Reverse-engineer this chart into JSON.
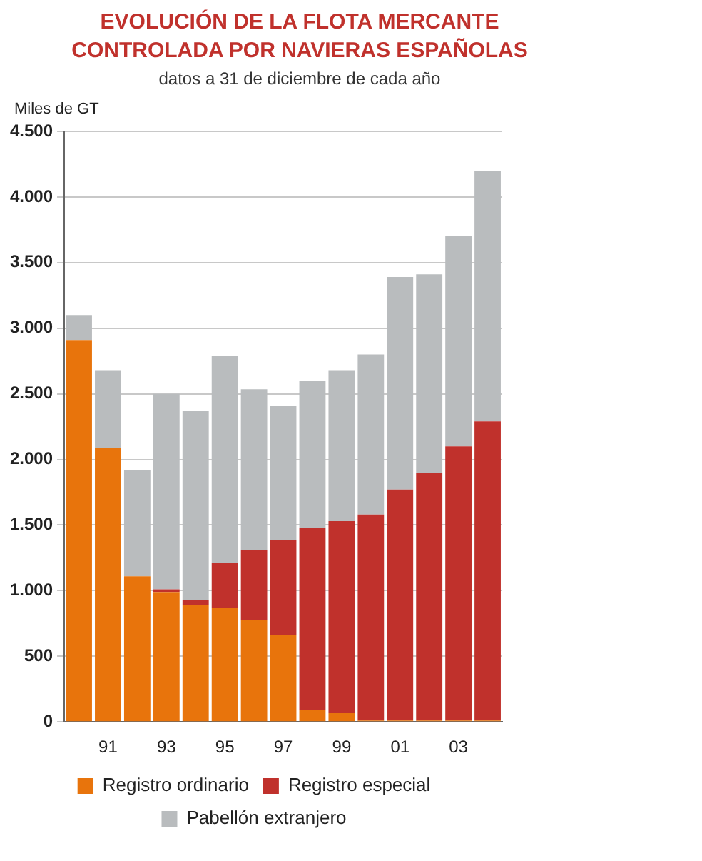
{
  "chart_data": {
    "type": "bar",
    "title": "EVOLUCIÓN DE LA FLOTA MERCANTE\nCONTROLADA POR NAVIERAS ESPAÑOLAS",
    "subtitle": "datos a 31 de diciembre de cada año",
    "ylabel": "Miles de GT",
    "categories": [
      null,
      "91",
      null,
      "93",
      null,
      "95",
      null,
      "97",
      null,
      "99",
      null,
      "01",
      null,
      "03",
      null
    ],
    "stacked": true,
    "series": [
      {
        "name": "Registro ordinario",
        "color": "#e8740c",
        "values": [
          2910,
          2090,
          1110,
          990,
          890,
          870,
          775,
          665,
          90,
          70,
          10,
          10,
          10,
          10,
          10
        ]
      },
      {
        "name": "Registro especial",
        "color": "#c0312c",
        "values": [
          0,
          0,
          0,
          20,
          40,
          340,
          535,
          720,
          1390,
          1460,
          1570,
          1760,
          1890,
          2090,
          2280
        ]
      },
      {
        "name": "Pabellón extranjero",
        "color": "#b9bcbe",
        "values": [
          190,
          590,
          810,
          1490,
          1440,
          1580,
          1225,
          1025,
          1120,
          1150,
          1220,
          1620,
          1510,
          1600,
          1910
        ]
      }
    ],
    "ylim": [
      0,
      4500
    ],
    "yticks": [
      0,
      500,
      {
        "value": 1000,
        "label": "1.000"
      },
      {
        "value": 1500,
        "label": "1.500"
      },
      {
        "value": 2000,
        "label": "2.000"
      },
      {
        "value": 2500,
        "label": "2.500"
      },
      {
        "value": 3000,
        "label": "3.000"
      },
      {
        "value": 3500,
        "label": "3.500"
      },
      {
        "value": 4000,
        "label": "4.000"
      },
      {
        "value": 4500,
        "label": "4.500"
      }
    ],
    "grid": "y",
    "legend": "bottom"
  }
}
